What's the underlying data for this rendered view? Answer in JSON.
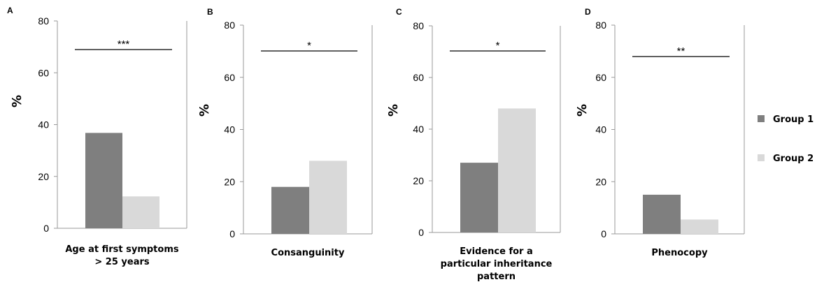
{
  "colors": {
    "group1": "#7f7f7f",
    "group2": "#d9d9d9",
    "axis": "#999999",
    "bracket": "#000000"
  },
  "legend": {
    "position": "right",
    "entries": [
      {
        "label": "Group 1",
        "color": "#7f7f7f"
      },
      {
        "label": "Group 2",
        "color": "#d9d9d9"
      }
    ]
  },
  "chart_data": [
    {
      "type": "bar",
      "panel": "A",
      "categories": [
        "Age at first symptoms\n> 25 years"
      ],
      "series": [
        {
          "name": "Group 1",
          "values": [
            36.8
          ]
        },
        {
          "name": "Group 2",
          "values": [
            12.3
          ]
        }
      ],
      "ylabel": "%",
      "ylim": [
        0,
        80
      ],
      "yticks": [
        0,
        20,
        40,
        60,
        80
      ],
      "significance": "***"
    },
    {
      "type": "bar",
      "panel": "B",
      "categories": [
        "Consanguinity"
      ],
      "series": [
        {
          "name": "Group 1",
          "values": [
            18
          ]
        },
        {
          "name": "Group 2",
          "values": [
            28
          ]
        }
      ],
      "ylabel": "%",
      "ylim": [
        0,
        80
      ],
      "yticks": [
        0,
        20,
        40,
        60,
        80
      ],
      "significance": "*"
    },
    {
      "type": "bar",
      "panel": "C",
      "categories": [
        "Evidence for a\nparticular inheritance\npattern"
      ],
      "series": [
        {
          "name": "Group 1",
          "values": [
            27
          ]
        },
        {
          "name": "Group 2",
          "values": [
            48
          ]
        }
      ],
      "ylabel": "%",
      "ylim": [
        0,
        80
      ],
      "yticks": [
        0,
        20,
        40,
        60,
        80
      ],
      "significance": "*"
    },
    {
      "type": "bar",
      "panel": "D",
      "categories": [
        "Phenocopy"
      ],
      "series": [
        {
          "name": "Group 1",
          "values": [
            15
          ]
        },
        {
          "name": "Group 2",
          "values": [
            5.5
          ]
        }
      ],
      "ylabel": "%",
      "ylim": [
        0,
        80
      ],
      "yticks": [
        0,
        20,
        40,
        60,
        80
      ],
      "significance": "**"
    }
  ]
}
